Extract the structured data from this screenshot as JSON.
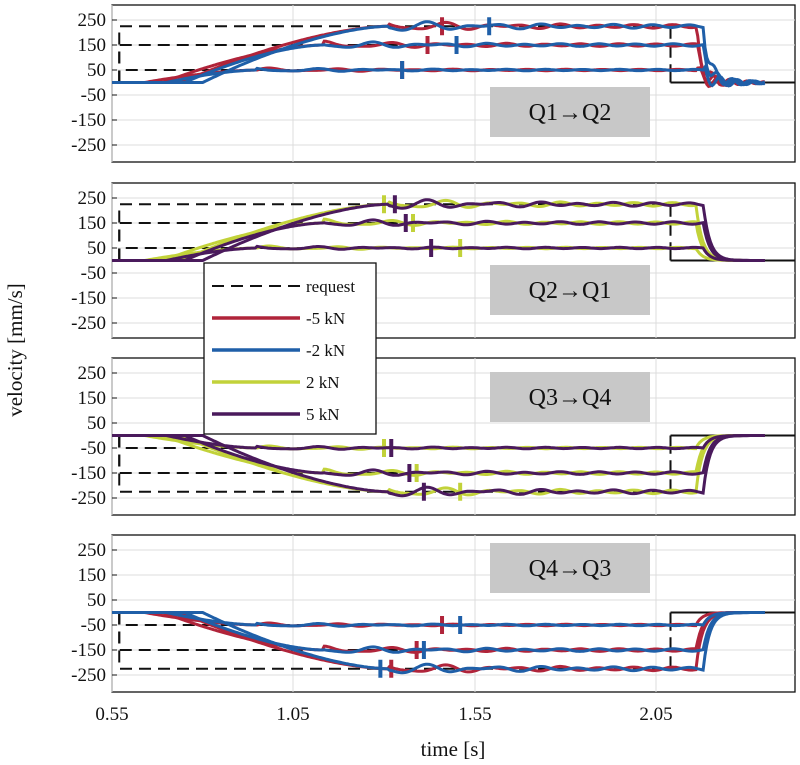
{
  "chart_data": {
    "type": "line",
    "xlabel": "time [s]",
    "ylabel": "velocity [mm/s]",
    "xlim": [
      0.55,
      2.35
    ],
    "ylim": [
      -300,
      300
    ],
    "xticks": [
      0.55,
      1.05,
      1.55,
      2.05
    ],
    "xtick_labels": [
      "0.55",
      "1.05",
      "1.55",
      "2.05"
    ],
    "yticks": [
      250,
      150,
      50,
      -50,
      -150,
      -250
    ],
    "ytick_labels": [
      "250",
      "150",
      "50",
      "-50",
      "-150",
      "-250"
    ],
    "grid": true,
    "legend": {
      "position": "center-left",
      "entries": [
        "request",
        "-5 kN",
        "-2 kN",
        "2 kN",
        "5 kN"
      ]
    },
    "colors": {
      "request": "#111111",
      "m5": "#b0243a",
      "m2": "#1f5fa8",
      "p2": "#c2d23a",
      "p5": "#4a1a5c"
    },
    "panels": [
      {
        "title": "Q1→Q2",
        "levels": [
          50,
          150,
          225
        ],
        "series": [
          "-5 kN",
          "-2 kN"
        ],
        "request_step_times": [
          0.57,
          2.09
        ],
        "marker_times": {
          "-5 kN": [
            1.35,
            1.42,
            1.46
          ],
          "-2 kN": [
            1.35,
            1.5,
            1.59
          ]
        }
      },
      {
        "title": "Q2→Q1",
        "levels": [
          50,
          150,
          225
        ],
        "series": [
          "2 kN",
          "5 kN"
        ],
        "request_step_times": [
          0.57,
          2.09
        ],
        "marker_times": {
          "2 kN": [
            1.51,
            1.38,
            1.3
          ],
          "5 kN": [
            1.43,
            1.36,
            1.33
          ]
        }
      },
      {
        "title": "Q3→Q4",
        "levels": [
          -50,
          -150,
          -225
        ],
        "series": [
          "2 kN",
          "5 kN"
        ],
        "request_step_times": [
          0.57,
          2.09
        ],
        "marker_times": {
          "2 kN": [
            1.3,
            1.39,
            1.51
          ],
          "5 kN": [
            1.32,
            1.37,
            1.41
          ]
        }
      },
      {
        "title": "Q4→Q3",
        "levels": [
          -50,
          -150,
          -225
        ],
        "series": [
          "-5 kN",
          "-2 kN"
        ],
        "request_step_times": [
          0.57,
          2.09
        ],
        "marker_times": {
          "-5 kN": [
            1.46,
            1.39,
            1.32
          ],
          "-2 kN": [
            1.51,
            1.41,
            1.29
          ]
        }
      }
    ]
  }
}
